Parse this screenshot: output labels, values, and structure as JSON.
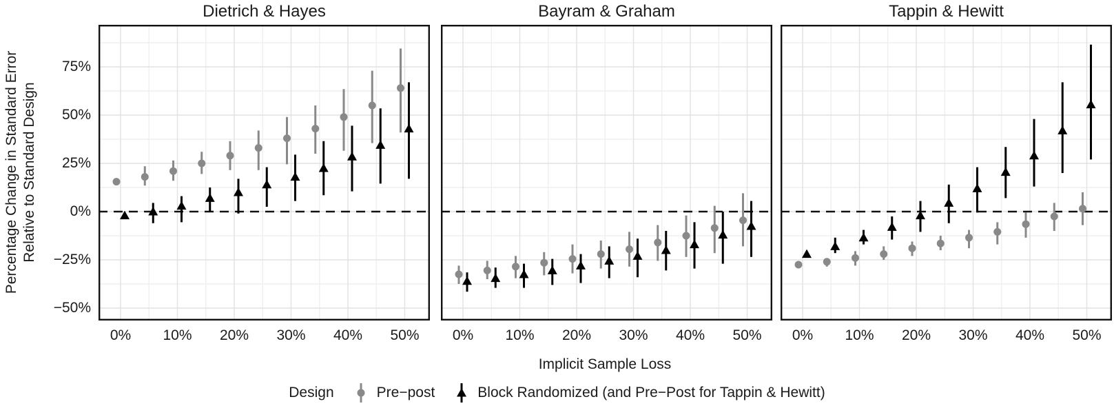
{
  "figure": {
    "ylabel_line1": "Percentage Change in Standard Error",
    "ylabel_line2": "Relative to Standard Design",
    "xlabel": "Implicit Sample Loss",
    "legend": {
      "title": "Design",
      "items": [
        {
          "label": "Pre−post",
          "marker": "circle",
          "color": "#898989"
        },
        {
          "label": "Block Randomized (and Pre−Post for Tappin & Hewitt)",
          "marker": "triangle",
          "color": "#000000"
        }
      ]
    }
  },
  "chart_data": {
    "type": "scatter",
    "subtype": "pointrange-dodged",
    "title": "",
    "xlabel": "Implicit Sample Loss",
    "ylabel": "Percentage Change in Standard Error Relative to Standard Design",
    "grid": true,
    "legend_position": "bottom",
    "reference_line_y": 0,
    "x_values": [
      0,
      5,
      10,
      15,
      20,
      25,
      30,
      35,
      40,
      45,
      50
    ],
    "x_tick_values": [
      0,
      10,
      20,
      30,
      40,
      50
    ],
    "x_ticks": [
      "0%",
      "10%",
      "20%",
      "30%",
      "40%",
      "50%"
    ],
    "x_minor_values": [
      5,
      15,
      25,
      35,
      45
    ],
    "y_tick_values": [
      75,
      50,
      25,
      0,
      -25,
      -50
    ],
    "y_ticks": [
      "75%",
      "50%",
      "25%",
      "0%",
      "−25%",
      "−50%"
    ],
    "y_minor_values": [
      87.5,
      62.5,
      37.5,
      12.5,
      -12.5,
      -37.5
    ],
    "xlim": [
      -3.9,
      54.4
    ],
    "ylim": [
      -56.5,
      96.8
    ],
    "colors": {
      "pre_post": "#898989",
      "block_randomized": "#000000",
      "grid_major": "#e2e2e2",
      "grid_minor": "#efefef",
      "panel_border": "#111111",
      "dashed_line": "#111111"
    },
    "panels": [
      {
        "title": "Dietrich & Hayes",
        "series": [
          {
            "name": "Pre-post",
            "marker": "circle",
            "color": "#898989",
            "y": [
              15.5,
              18,
              21,
              25,
              29,
              33,
              38,
              43,
              49,
              55,
              64
            ],
            "ymin": [
              15,
              13.5,
              16,
              19.5,
              21.5,
              21.5,
              24.5,
              30,
              31.5,
              35.5,
              41
            ],
            "ymax": [
              16,
              23.5,
              26.5,
              31,
              36.5,
              42,
              49,
              55,
              63.5,
              73,
              84.5
            ]
          },
          {
            "name": "Block Randomized",
            "marker": "triangle",
            "color": "#000000",
            "y": [
              -2,
              0,
              3,
              7,
              10,
              14,
              18,
              22.5,
              28.5,
              34.5,
              43
            ],
            "ymin": [
              -3,
              -6,
              -5.5,
              0,
              -1,
              2.5,
              5.5,
              8.5,
              10.5,
              14.5,
              17
            ],
            "ymax": [
              -1,
              4.5,
              8,
              12.5,
              17,
              23,
              29.5,
              36.5,
              44.5,
              53.5,
              67
            ]
          }
        ]
      },
      {
        "title": "Bayram & Graham",
        "series": [
          {
            "name": "Pre-post",
            "marker": "circle",
            "color": "#898989",
            "y": [
              -32.5,
              -30.5,
              -28.5,
              -26.5,
              -24.5,
              -22,
              -19.5,
              -16,
              -12.5,
              -8.5,
              -4.5
            ],
            "ymin": [
              -37.5,
              -35,
              -34.5,
              -33,
              -32,
              -29.5,
              -28.5,
              -25.5,
              -23.5,
              -21.5,
              -18
            ],
            "ymax": [
              -28,
              -25.5,
              -23,
              -21,
              -17,
              -15,
              -10.5,
              -7,
              -2,
              3,
              9.5
            ]
          },
          {
            "name": "Block Randomized",
            "marker": "triangle",
            "color": "#000000",
            "y": [
              -36,
              -34.5,
              -32.5,
              -30.5,
              -28,
              -25.5,
              -23,
              -20,
              -17,
              -12,
              -7.5
            ],
            "ymin": [
              -41.5,
              -39.5,
              -39.5,
              -38,
              -37,
              -34.5,
              -34,
              -30.5,
              -29.5,
              -27,
              -23.5
            ],
            "ymax": [
              -31.5,
              -29,
              -27,
              -24.5,
              -22,
              -18,
              -14,
              -10,
              -5.5,
              0,
              5.5
            ]
          }
        ]
      },
      {
        "title": "Tappin & Hewitt",
        "series": [
          {
            "name": "Pre-post",
            "marker": "circle",
            "color": "#898989",
            "y": [
              -27.5,
              -26,
              -24,
              -22,
              -19,
              -16.5,
              -13.5,
              -10.5,
              -6.5,
              -2.5,
              1.5
            ],
            "ymin": [
              -28,
              -28.5,
              -28,
              -25,
              -23,
              -20,
              -19,
              -17,
              -13.5,
              -10,
              -7
            ],
            "ymax": [
              -27,
              -25,
              -20.5,
              -18,
              -15.5,
              -12.5,
              -9.5,
              -5.5,
              -0.5,
              4.5,
              10
            ]
          },
          {
            "name": "Block Randomized",
            "marker": "triangle",
            "color": "#000000",
            "y": [
              -22,
              -18,
              -13.5,
              -8,
              -2,
              4.5,
              12,
              20.5,
              29,
              42,
              55.5
            ],
            "ymin": [
              -22.5,
              -21.5,
              -17,
              -14.5,
              -10.5,
              -6,
              -0.5,
              7,
              13,
              20,
              27
            ],
            "ymax": [
              -21.5,
              -13.5,
              -9.5,
              -2.5,
              5.5,
              14,
              23,
              33.5,
              48,
              67,
              86.5
            ]
          }
        ]
      }
    ]
  }
}
